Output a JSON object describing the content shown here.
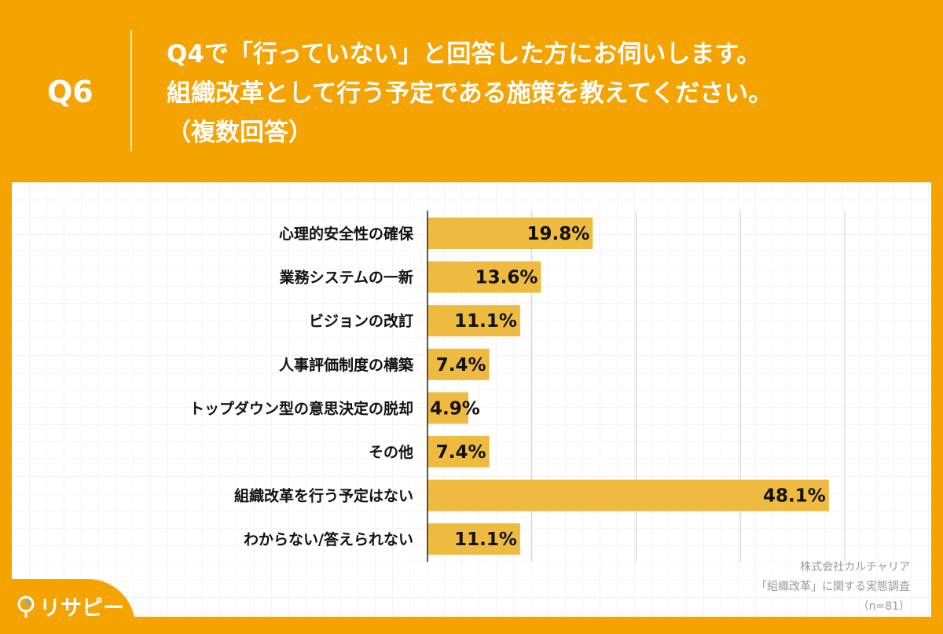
{
  "header": {
    "question_number": "Q6",
    "title": "Q4で「行っていない」と回答した方にお伺いします。\n組織改革として行う予定である施策を教えてください。\n（複数回答）"
  },
  "chart_data": {
    "type": "bar",
    "orientation": "horizontal",
    "categories": [
      "心理的安全性の確保",
      "業務システムの一新",
      "ビジョンの改訂",
      "人事評価制度の構築",
      "トップダウン型の意思決定の脱却",
      "その他",
      "組織改革を行う予定はない",
      "わからない/答えられない"
    ],
    "values": [
      19.8,
      13.6,
      11.1,
      7.4,
      4.9,
      7.4,
      48.1,
      11.1
    ],
    "value_suffix": "%",
    "xlim": [
      0,
      50
    ],
    "grid_step": 12.5,
    "grid": true,
    "bar_color": "#EEBB40"
  },
  "source": {
    "line1": "株式会社カルチャリア",
    "line2": "「組織改革」に関する実態調査",
    "line3": "（n=81）"
  },
  "logo": {
    "text": "リサピー"
  },
  "colors": {
    "background": "#F5A300",
    "bar": "#EEBB40"
  }
}
